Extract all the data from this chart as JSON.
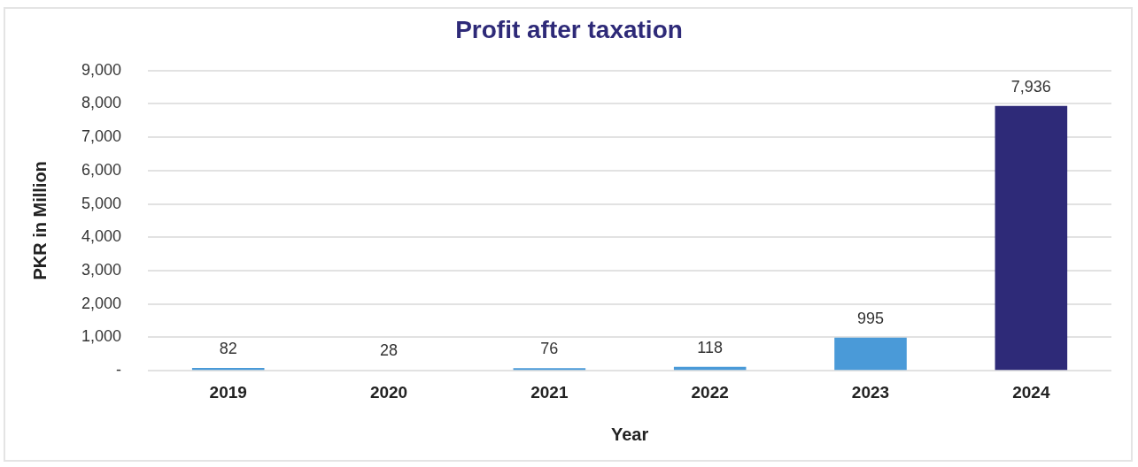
{
  "chart_data": {
    "type": "bar",
    "title": "Profit after taxation",
    "xlabel": "Year",
    "ylabel": "PKR in Million",
    "categories": [
      "2019",
      "2020",
      "2021",
      "2022",
      "2023",
      "2024"
    ],
    "values": [
      82,
      28,
      76,
      118,
      995,
      7936
    ],
    "colors": [
      "#4a9ad8",
      "#4a9ad8",
      "#4a9ad8",
      "#4a9ad8",
      "#4a9ad8",
      "#2e2a78"
    ],
    "value_labels": [
      "82",
      "28",
      "76",
      "118",
      "995",
      "7,936"
    ],
    "ylim": [
      0,
      9000
    ],
    "yticks": [
      {
        "value": 0,
        "label": "-"
      },
      {
        "value": 1000,
        "label": "1,000"
      },
      {
        "value": 2000,
        "label": "2,000"
      },
      {
        "value": 3000,
        "label": "3,000"
      },
      {
        "value": 4000,
        "label": "4,000"
      },
      {
        "value": 5000,
        "label": "5,000"
      },
      {
        "value": 6000,
        "label": "6,000"
      },
      {
        "value": 7000,
        "label": "7,000"
      },
      {
        "value": 8000,
        "label": "8,000"
      },
      {
        "value": 9000,
        "label": "9,000"
      }
    ],
    "grid": "y"
  }
}
